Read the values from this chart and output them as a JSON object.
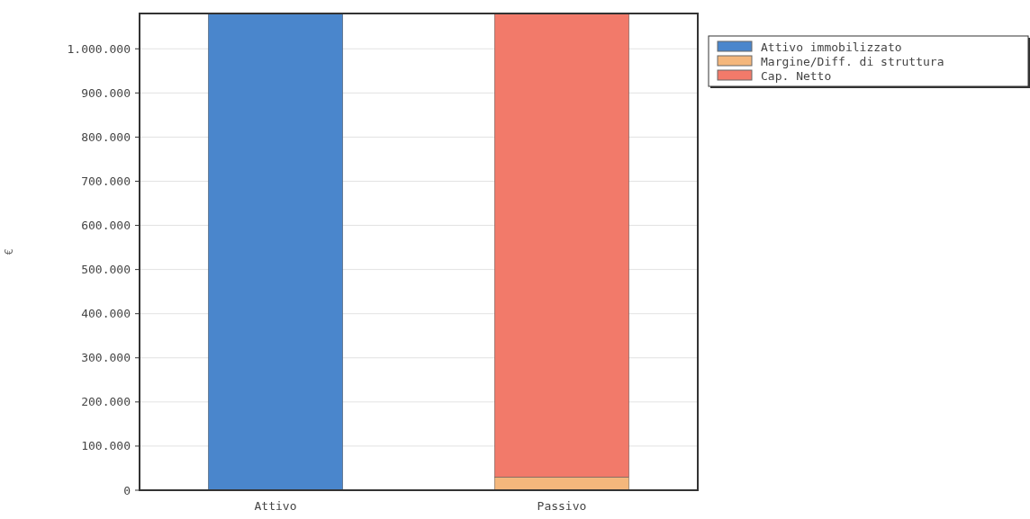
{
  "chart_data": {
    "type": "bar",
    "stacked": true,
    "ylabel": "€",
    "categories": [
      "Attivo",
      "Passivo"
    ],
    "series": [
      {
        "name": "Attivo immobilizzato",
        "color": "#4a86cc",
        "values": [
          1080000,
          null
        ]
      },
      {
        "name": "Margine/Diff. di struttura",
        "color": "#f4b77c",
        "values": [
          null,
          30000
        ]
      },
      {
        "name": "Cap. Netto",
        "color": "#f27a6a",
        "values": [
          null,
          1050000
        ]
      }
    ],
    "ylim": [
      0,
      1080000
    ],
    "yticks": [
      {
        "value": 0,
        "label": "0"
      },
      {
        "value": 100000,
        "label": "100.000"
      },
      {
        "value": 200000,
        "label": "200.000"
      },
      {
        "value": 300000,
        "label": "300.000"
      },
      {
        "value": 400000,
        "label": "400.000"
      },
      {
        "value": 500000,
        "label": "500.000"
      },
      {
        "value": 600000,
        "label": "600.000"
      },
      {
        "value": 700000,
        "label": "700.000"
      },
      {
        "value": 800000,
        "label": "800.000"
      },
      {
        "value": 900000,
        "label": "900.000"
      },
      {
        "value": 1000000,
        "label": "1.000.000"
      }
    ],
    "grid": "y",
    "legend": "top right"
  }
}
